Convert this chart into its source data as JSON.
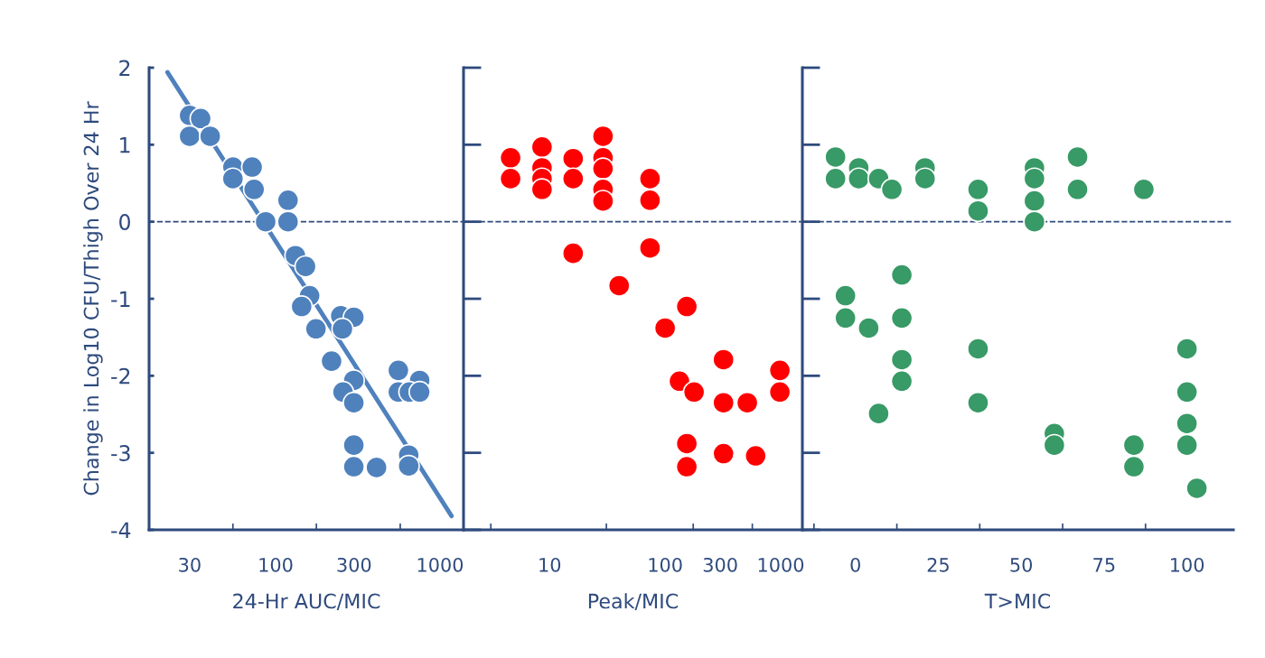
{
  "chart_data": [
    {
      "type": "scatter",
      "xlabel": "24-Hr AUC/MIC",
      "ylabel": "Change in Log10 CFU/Thigh Over 24 Hr",
      "log": "x",
      "marker": "circle",
      "grid": false,
      "xlim": [
        17,
        1390
      ],
      "ylim": [
        -4,
        2
      ],
      "xticks": [
        30,
        {
          "value": 55,
          "label": null
        },
        100,
        {
          "value": 177,
          "label": null
        },
        300,
        {
          "value": 573,
          "label": null
        },
        1000
      ],
      "yticks": [
        -4,
        -3,
        -2,
        -1,
        0,
        1,
        2
      ],
      "ref_lines": [
        {
          "axis": "y",
          "value": 0,
          "line_style": "dashed",
          "color": "#2e4a7d"
        }
      ],
      "series": [
        {
          "color": "#4f81bd",
          "x": [
            30,
            35,
            30,
            40,
            55,
            72,
            55,
            74,
            87,
            119,
            119,
            132,
            152,
            161,
            144,
            176,
            249,
            299,
            255,
            219,
            299,
            257,
            299,
            558,
            752,
            558,
            651,
            752,
            299,
            299,
            411,
            645,
            645
          ],
          "values": [
            1.38,
            1.34,
            1.11,
            1.11,
            0.71,
            0.71,
            0.56,
            0.42,
            0,
            0.28,
            0,
            -0.44,
            -0.58,
            -0.96,
            -1.1,
            -1.39,
            -1.22,
            -1.24,
            -1.39,
            -1.81,
            -2.06,
            -2.21,
            -2.35,
            -1.93,
            -2.06,
            -2.21,
            -2.21,
            -2.21,
            -2.9,
            -3.18,
            -3.19,
            -3.03,
            -3.17
          ]
        },
        {
          "type": "line",
          "marker": "none",
          "color": "#4f81bd",
          "x": [
            22,
            1175
          ],
          "values": [
            1.94,
            -3.82
          ]
        }
      ]
    },
    {
      "type": "scatter",
      "xlabel": "Peak/MIC",
      "log": "x",
      "marker": "circle",
      "grid": false,
      "tick_labels": "x",
      "xlim": [
        1.8,
        1540
      ],
      "ylim": [
        -4,
        2
      ],
      "xticks": [
        {
          "value": 3.1,
          "label": null
        },
        10,
        {
          "value": 31,
          "label": null
        },
        100,
        {
          "value": 175,
          "label": null
        },
        300,
        {
          "value": 568,
          "label": null
        },
        1000
      ],
      "yticks": [
        -4,
        -3,
        -2,
        -1,
        0,
        1,
        2
      ],
      "ref_lines": [
        {
          "axis": "y",
          "value": 0,
          "line_style": "dashed",
          "color": "#2e4a7d"
        }
      ],
      "series": [
        {
          "color": "#ff0000",
          "x": [
            4.6,
            4.6,
            8.6,
            8.6,
            8.6,
            8.6,
            16,
            16,
            16,
            29,
            29,
            29,
            29,
            29,
            74,
            74,
            74,
            40,
            100,
            154,
            133,
            178,
            154,
            154,
            320,
            320,
            320,
            514,
            607,
            984,
            984
          ],
          "values": [
            0.83,
            0.56,
            0.97,
            0.7,
            0.56,
            0.42,
            0.82,
            0.56,
            -0.41,
            1.11,
            0.83,
            0.69,
            0.42,
            0.27,
            0.56,
            0.28,
            -0.34,
            -0.83,
            -1.38,
            -1.1,
            -2.07,
            -2.21,
            -2.88,
            -3.18,
            -1.79,
            -2.35,
            -3.01,
            -2.35,
            -3.04,
            -1.93,
            -2.21
          ]
        }
      ]
    },
    {
      "type": "scatter",
      "xlabel": "T>MIC",
      "marker": "circle",
      "grid": false,
      "tick_labels": "x",
      "xlim": [
        -16,
        114
      ],
      "ylim": [
        -4,
        2
      ],
      "xticks": [
        {
          "value": -12.5,
          "label": null
        },
        0,
        {
          "value": 12.5,
          "label": null
        },
        25,
        {
          "value": 37.5,
          "label": null
        },
        50,
        {
          "value": 62.5,
          "label": null
        },
        75,
        {
          "value": 87.5,
          "label": null
        },
        100
      ],
      "yticks": [
        -4,
        -3,
        -2,
        -1,
        0,
        1,
        2
      ],
      "ref_lines": [
        {
          "axis": "y",
          "value": 0,
          "line_style": "dashed",
          "color": "#2e4a7d"
        }
      ],
      "series": [
        {
          "color": "#389a66",
          "x": [
            -6,
            -6,
            1,
            1,
            7,
            11,
            21,
            21,
            37,
            37,
            54,
            54,
            54,
            54,
            67,
            67,
            87,
            -3,
            -3,
            4,
            14,
            14,
            14,
            14,
            7,
            37,
            37,
            60,
            60,
            84,
            84,
            100,
            100,
            100,
            100,
            103
          ],
          "values": [
            0.84,
            0.56,
            0.7,
            0.56,
            0.56,
            0.42,
            0.7,
            0.56,
            0.42,
            0.14,
            0.7,
            0.56,
            0.27,
            0,
            0.84,
            0.42,
            0.42,
            -0.96,
            -1.25,
            -1.38,
            -0.69,
            -1.25,
            -1.79,
            -2.07,
            -2.49,
            -1.65,
            -2.35,
            -2.75,
            -2.9,
            -2.9,
            -3.18,
            -1.65,
            -2.21,
            -2.62,
            -2.9,
            -3.46
          ]
        }
      ]
    }
  ]
}
